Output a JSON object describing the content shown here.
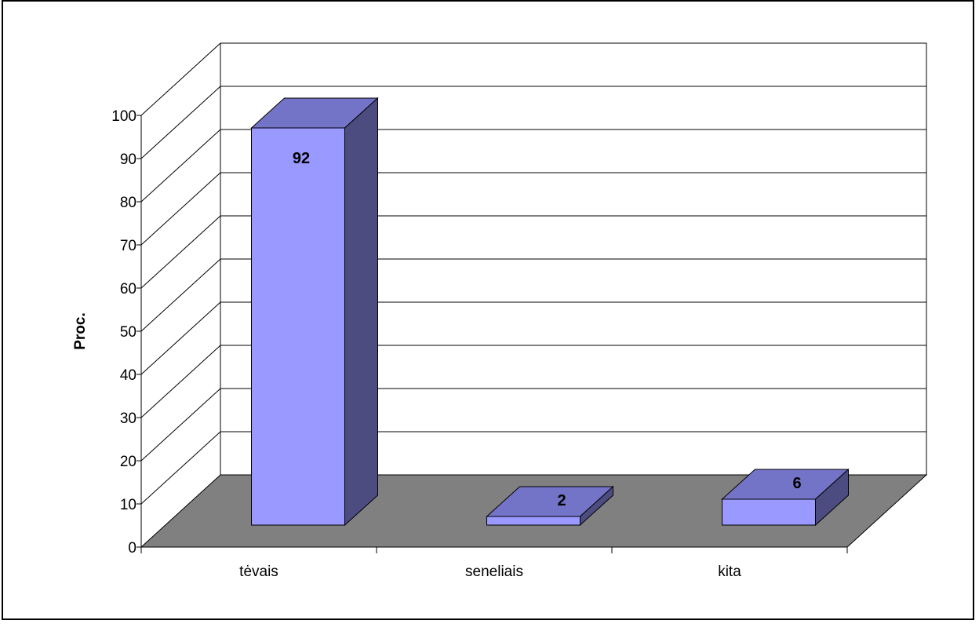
{
  "chart_data": {
    "type": "bar",
    "style": "3d-column",
    "categories": [
      "tėvais",
      "seneliais",
      "kita"
    ],
    "values": [
      92,
      2,
      6
    ],
    "data_labels": [
      "92",
      "2",
      "6"
    ],
    "ylabel": "Proc.",
    "xlabel": "",
    "ylim": [
      0,
      100
    ],
    "yticks": [
      "0",
      "10",
      "20",
      "30",
      "40",
      "50",
      "60",
      "70",
      "80",
      "90",
      "100"
    ],
    "grid": true,
    "legend": "none",
    "colors": {
      "bar_front": "#9999ff",
      "bar_top": "#7373c7",
      "bar_side": "#4c4c80",
      "floor": "#808080",
      "gridline": "#000000",
      "background": "#ffffff"
    }
  }
}
